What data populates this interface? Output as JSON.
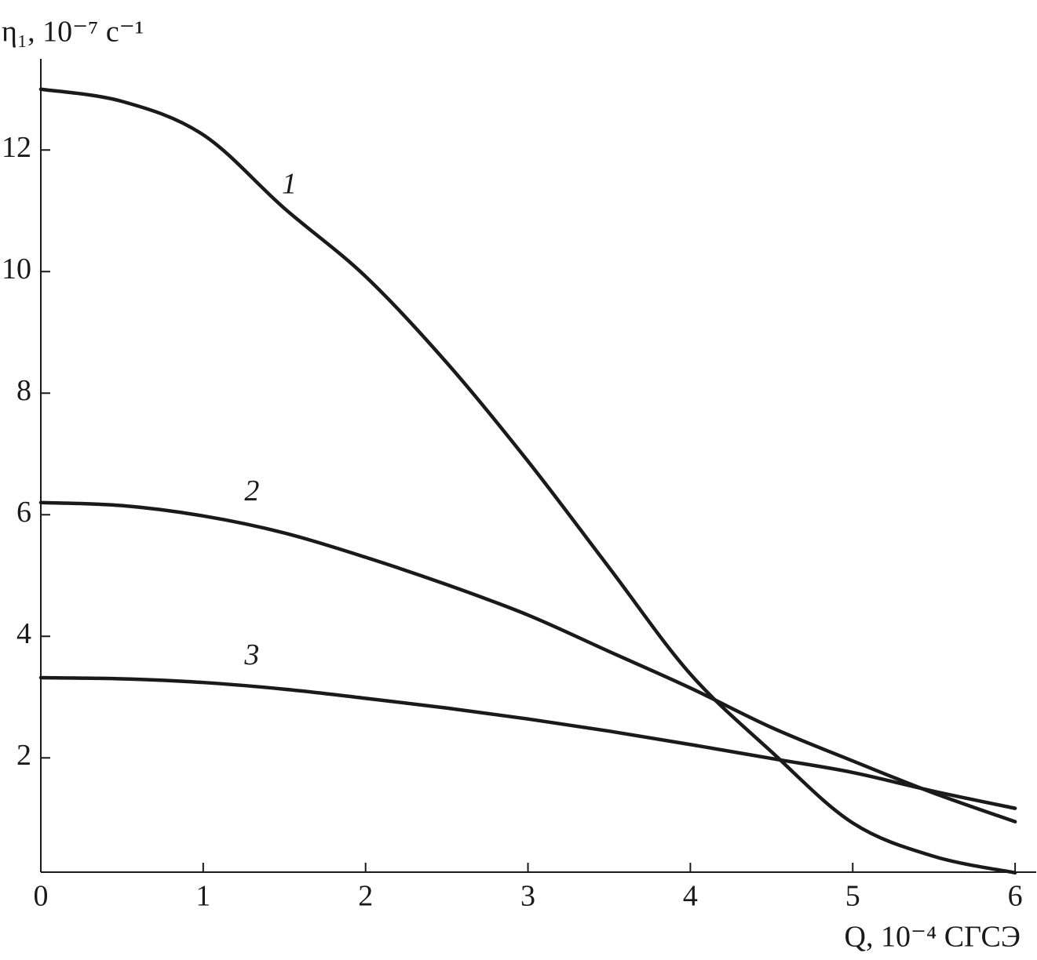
{
  "chart_data": {
    "type": "line",
    "y_label": "η₁, 10⁻⁷ с⁻¹",
    "x_label": "Q, 10⁻⁴ СГСЭ",
    "x": [
      0,
      0.5,
      1,
      1.5,
      2,
      2.5,
      3,
      3.5,
      4,
      4.5,
      5,
      5.5,
      6
    ],
    "series": [
      {
        "name": "1",
        "color": "#1a1a1a",
        "values": [
          13.0,
          12.8,
          12.25,
          11.04,
          9.92,
          8.5,
          6.88,
          5.13,
          3.38,
          2.1,
          0.93,
          0.38,
          0.11
        ]
      },
      {
        "name": "2",
        "color": "#1a1a1a",
        "values": [
          6.2,
          6.15,
          5.98,
          5.7,
          5.3,
          4.85,
          4.35,
          3.75,
          3.15,
          2.5,
          1.95,
          1.42,
          0.95
        ]
      },
      {
        "name": "3",
        "color": "#1a1a1a",
        "values": [
          3.32,
          3.3,
          3.24,
          3.13,
          2.98,
          2.82,
          2.64,
          2.44,
          2.22,
          1.99,
          1.76,
          1.45,
          1.17
        ]
      }
    ],
    "xlim": [
      0,
      6.13
    ],
    "ylim": [
      0.12,
      13.5
    ],
    "xticks": [
      0,
      1,
      2,
      3,
      4,
      5,
      6
    ],
    "yticks": [
      2,
      4,
      6,
      8,
      10,
      12
    ],
    "grid": false
  }
}
